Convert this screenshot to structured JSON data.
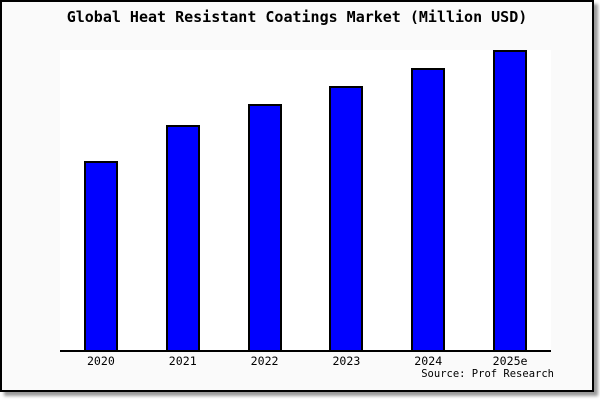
{
  "figure": {
    "title": "Global Heat Resistant Coatings Market (Million USD)",
    "source_label": "Source: Prof Research",
    "colors": {
      "bar_fill": "#0000ff",
      "bar_border": "#000000",
      "figure_background": "#fafafa",
      "plot_background": "#ffffff",
      "axis_line": "#000000",
      "title_text": "#000000"
    }
  },
  "chart_data": {
    "type": "bar",
    "title": "Global Heat Resistant Coatings Market (Million USD)",
    "categories": [
      "2020",
      "2021",
      "2022",
      "2023",
      "2024",
      "2025e"
    ],
    "values": [
      63,
      75,
      82,
      88,
      94,
      100
    ],
    "xlabel": "",
    "ylabel": "",
    "ylim": [
      0,
      100
    ],
    "y_axis_visible": false,
    "grid": false,
    "legend": false,
    "annotations": [
      "Source: Prof Research"
    ]
  }
}
